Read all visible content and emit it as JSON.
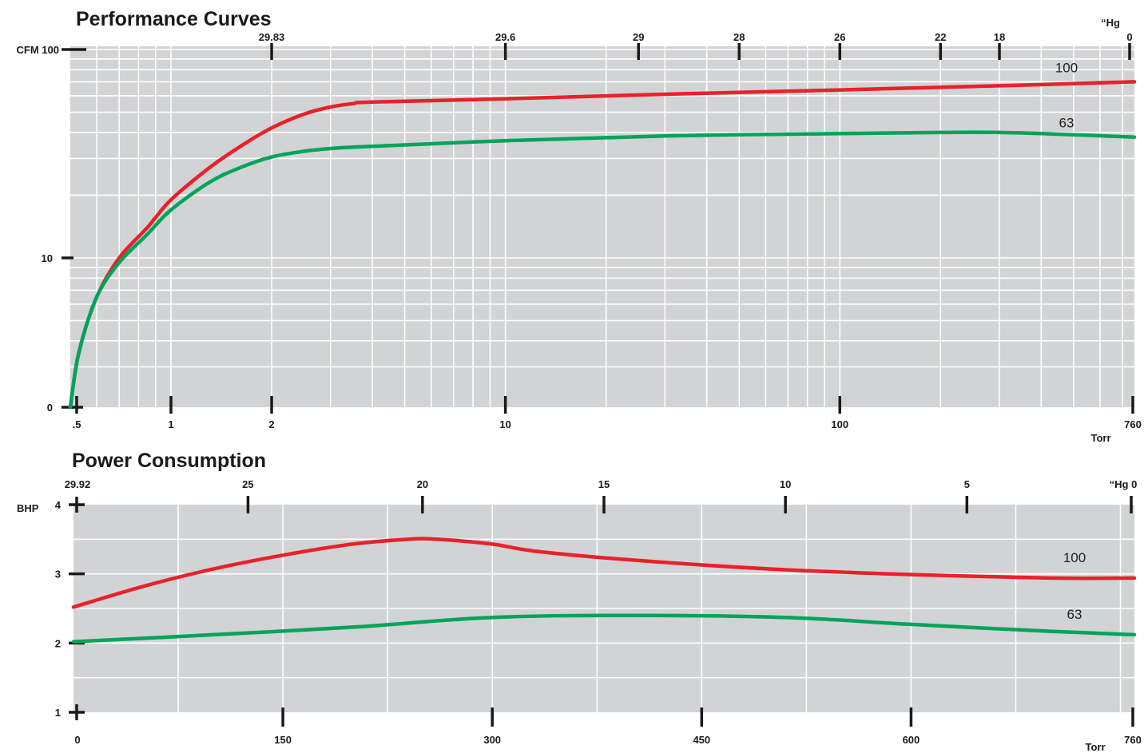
{
  "colors": {
    "plot_bg": "#d2d3d5",
    "grid": "#ffffff",
    "tick": "#1a1a1a",
    "red": "#e8212a",
    "green": "#00a45a"
  },
  "chart_data": [
    {
      "type": "line",
      "title": "Performance Curves",
      "xlabel": "Torr",
      "ylabel": "CFM",
      "x_scale": "log",
      "y_scale": "log",
      "xlim": [
        0.5,
        760
      ],
      "ylim": [
        0,
        100
      ],
      "x_ticks": [
        0.5,
        1,
        2,
        10,
        100,
        760
      ],
      "x_tick_labels": [
        ".5",
        "1",
        "2",
        "10",
        "100",
        "760"
      ],
      "y_ticks": [
        0,
        10,
        100
      ],
      "y_tick_labels": [
        "0",
        "10",
        "CFM 100"
      ],
      "top_axis_label": "“Hg",
      "top_ticks": [
        {
          "torr": 2,
          "label": "29.83"
        },
        {
          "torr": 10,
          "label": "29.6"
        },
        {
          "torr": 25,
          "label": "29"
        },
        {
          "torr": 50,
          "label": "28"
        },
        {
          "torr": 100,
          "label": "26"
        },
        {
          "torr": 200,
          "label": "22"
        },
        {
          "torr": 300,
          "label": "18"
        },
        {
          "torr": 760,
          "label": "0"
        }
      ],
      "grid": true,
      "series": [
        {
          "name": "100",
          "color": "red",
          "x": [
            0.5,
            0.53,
            0.6,
            0.7,
            0.85,
            1,
            1.3,
            1.6,
            2,
            2.5,
            3,
            3.5,
            4,
            10,
            30,
            100,
            300,
            760
          ],
          "y": [
            0.6,
            3.5,
            6.5,
            10,
            14,
            19,
            27,
            34,
            42,
            49,
            53,
            55,
            56,
            58,
            61,
            64,
            67,
            70
          ]
        },
        {
          "name": "63",
          "color": "green",
          "x": [
            0.5,
            0.53,
            0.6,
            0.7,
            0.85,
            1,
            1.3,
            1.6,
            2,
            2.5,
            3,
            3.5,
            4,
            10,
            30,
            100,
            200,
            300,
            500,
            760
          ],
          "y": [
            0.6,
            3.5,
            6.5,
            9.5,
            13,
            17,
            23,
            27,
            30.5,
            32.5,
            33.5,
            34,
            34.3,
            36.5,
            38.5,
            39.5,
            40,
            40,
            39,
            38
          ]
        }
      ]
    },
    {
      "type": "line",
      "title": "Power Consumption",
      "xlabel": "Torr",
      "ylabel": "BHP",
      "xlim": [
        0,
        760
      ],
      "ylim": [
        1,
        4
      ],
      "x_ticks": [
        0,
        150,
        300,
        450,
        600,
        760
      ],
      "x_tick_labels": [
        "0",
        "150",
        "300",
        "450",
        "600",
        "760"
      ],
      "y_ticks": [
        1,
        2,
        3,
        4
      ],
      "y_tick_labels": [
        "1",
        "2",
        "3",
        "4"
      ],
      "top_axis_label": "“Hg 0",
      "top_ticks": [
        {
          "torr": 0,
          "label": "29.92"
        },
        {
          "torr": 125,
          "label": "25"
        },
        {
          "torr": 250,
          "label": "20"
        },
        {
          "torr": 380,
          "label": "15"
        },
        {
          "torr": 510,
          "label": "10"
        },
        {
          "torr": 640,
          "label": "5"
        },
        {
          "torr": 760,
          "label": ""
        }
      ],
      "grid": true,
      "series": [
        {
          "name": "100",
          "color": "red",
          "x": [
            0,
            50,
            100,
            150,
            200,
            240,
            260,
            300,
            330,
            400,
            500,
            600,
            700,
            760
          ],
          "y": [
            2.52,
            2.82,
            3.07,
            3.27,
            3.43,
            3.5,
            3.5,
            3.43,
            3.33,
            3.2,
            3.07,
            2.99,
            2.94,
            2.94
          ]
        },
        {
          "name": "63",
          "color": "green",
          "x": [
            0,
            100,
            200,
            300,
            400,
            510,
            600,
            700,
            760
          ],
          "y": [
            2.02,
            2.12,
            2.23,
            2.37,
            2.4,
            2.37,
            2.27,
            2.17,
            2.12
          ]
        }
      ]
    }
  ]
}
